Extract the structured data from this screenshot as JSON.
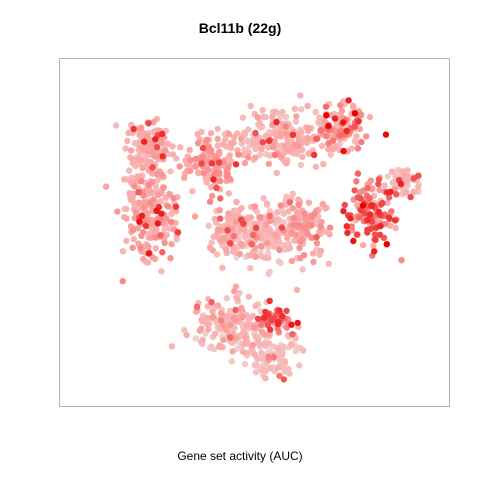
{
  "chart_data": {
    "type": "scatter",
    "title": "Bcl11b (22g)",
    "xlabel": "Gene set activity (AUC)",
    "ylabel": "",
    "grid": false,
    "legend": "none",
    "color_scale": {
      "low": "#e8e8e8",
      "mid": "#fbaaa8",
      "high": "#e80000"
    },
    "note": "",
    "clusters": [
      {
        "center": [
          -0.55,
          0.5
        ],
        "spread": [
          0.1,
          0.1
        ],
        "n": 130,
        "activity": [
          0.35,
          0.55
        ]
      },
      {
        "center": [
          -0.55,
          0.15
        ],
        "spread": [
          0.12,
          0.2
        ],
        "n": 220,
        "activity": [
          0.35,
          0.6
        ]
      },
      {
        "center": [
          -0.22,
          0.42
        ],
        "spread": [
          0.1,
          0.12
        ],
        "n": 140,
        "activity": [
          0.4,
          0.6
        ]
      },
      {
        "center": [
          -0.1,
          0.05
        ],
        "spread": [
          0.1,
          0.12
        ],
        "n": 110,
        "activity": [
          0.3,
          0.55
        ]
      },
      {
        "center": [
          0.15,
          0.55
        ],
        "spread": [
          0.2,
          0.12
        ],
        "n": 200,
        "activity": [
          0.25,
          0.55
        ]
      },
      {
        "center": [
          0.45,
          0.62
        ],
        "spread": [
          0.12,
          0.1
        ],
        "n": 110,
        "activity": [
          0.3,
          0.7
        ]
      },
      {
        "center": [
          0.05,
          0.05
        ],
        "spread": [
          0.12,
          0.12
        ],
        "n": 150,
        "activity": [
          0.1,
          0.45
        ]
      },
      {
        "center": [
          0.25,
          0.08
        ],
        "spread": [
          0.12,
          0.14
        ],
        "n": 130,
        "activity": [
          0.3,
          0.6
        ]
      },
      {
        "center": [
          0.62,
          0.15
        ],
        "spread": [
          0.1,
          0.14
        ],
        "n": 140,
        "activity": [
          0.4,
          0.9
        ]
      },
      {
        "center": [
          0.78,
          0.32
        ],
        "spread": [
          0.08,
          0.05
        ],
        "n": 60,
        "activity": [
          0.2,
          0.5
        ]
      },
      {
        "center": [
          -0.1,
          -0.45
        ],
        "spread": [
          0.18,
          0.12
        ],
        "n": 180,
        "activity": [
          0.15,
          0.55
        ]
      },
      {
        "center": [
          0.1,
          -0.6
        ],
        "spread": [
          0.12,
          0.1
        ],
        "n": 80,
        "activity": [
          0.15,
          0.45
        ]
      },
      {
        "center": [
          0.12,
          -0.42
        ],
        "spread": [
          0.08,
          0.06
        ],
        "n": 40,
        "activity": [
          0.5,
          0.95
        ]
      }
    ],
    "xlim": [
      -1.0,
      1.0
    ],
    "ylim": [
      -0.85,
      0.95
    ]
  }
}
